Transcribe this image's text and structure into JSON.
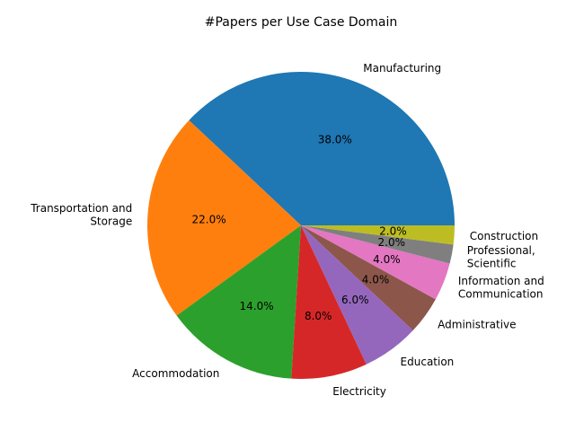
{
  "chart_data": {
    "type": "pie",
    "title": "#Papers per Use Case Domain",
    "start_angle_deg": 0,
    "direction": "counterclockwise",
    "series": [
      {
        "name": "#Papers",
        "slices": [
          {
            "label": "Manufacturing",
            "value": 38.0,
            "pct_text": "38.0%",
            "color": "#1f77b4"
          },
          {
            "label": "Transportation and\nStorage",
            "value": 22.0,
            "pct_text": "22.0%",
            "color": "#ff7f0e"
          },
          {
            "label": "Accommodation",
            "value": 14.0,
            "pct_text": "14.0%",
            "color": "#2ca02c"
          },
          {
            "label": "Electricity",
            "value": 8.0,
            "pct_text": "8.0%",
            "color": "#d62728"
          },
          {
            "label": "Education",
            "value": 6.0,
            "pct_text": "6.0%",
            "color": "#9467bd"
          },
          {
            "label": "Administrative",
            "value": 4.0,
            "pct_text": "4.0%",
            "color": "#8c564b"
          },
          {
            "label": "Information and\nCommunication",
            "value": 4.0,
            "pct_text": "4.0%",
            "color": "#e377c2"
          },
          {
            "label": "Professional,\nScientific",
            "value": 2.0,
            "pct_text": "2.0%",
            "color": "#7f7f7f"
          },
          {
            "label": "Construction",
            "value": 2.0,
            "pct_text": "2.0%",
            "color": "#bcbd22"
          }
        ]
      }
    ],
    "legend": "none"
  }
}
